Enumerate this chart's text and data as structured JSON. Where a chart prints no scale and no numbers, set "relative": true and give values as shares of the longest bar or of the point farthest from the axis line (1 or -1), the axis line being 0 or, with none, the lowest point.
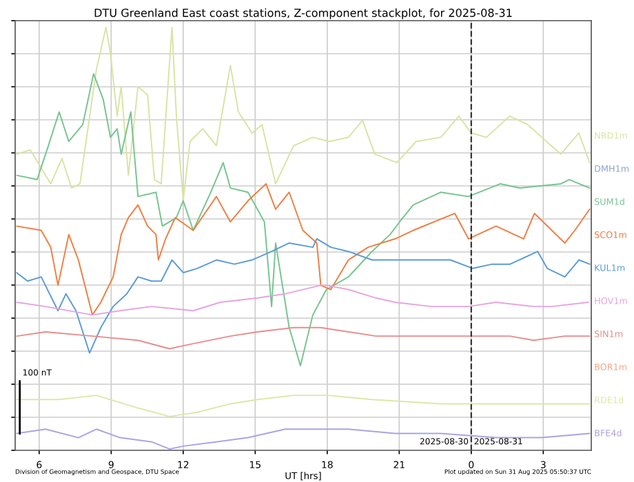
{
  "chart_data": {
    "type": "line",
    "title": "DTU Greenland East coast stations, Z-component stackplot, for 2025-08-31",
    "xlabel": "UT [hrs]",
    "xlim": [
      "2025-08-30T05:00",
      "2025-08-31T05:00"
    ],
    "xticks": [
      {
        "value": "2025-08-30T06:00",
        "label": "6"
      },
      {
        "value": "2025-08-30T09:00",
        "label": "9"
      },
      {
        "value": "2025-08-30T12:00",
        "label": "12"
      },
      {
        "value": "2025-08-30T15:00",
        "label": "15"
      },
      {
        "value": "2025-08-30T18:00",
        "label": "18"
      },
      {
        "value": "2025-08-30T21:00",
        "label": "21"
      },
      {
        "value": "2025-08-31T00:00",
        "label": "0"
      },
      {
        "value": "2025-08-31T03:00",
        "label": "3"
      }
    ],
    "relative": true,
    "grid": true,
    "tick_labels": "x",
    "line_style": "solid",
    "marker": "none",
    "series": [
      {
        "name": "NRD1m",
        "color": "#d9e3a3",
        "x": [
          "2025-08-30T05:04",
          "2025-08-30T05:38",
          "2025-08-30T06:29",
          "2025-08-30T06:57",
          "2025-08-30T07:21",
          "2025-08-30T07:42",
          "2025-08-30T08:23",
          "2025-08-30T08:47",
          "2025-08-30T08:58",
          "2025-08-30T09:15",
          "2025-08-30T09:25",
          "2025-08-30T09:43",
          "2025-08-30T10:07",
          "2025-08-30T10:31",
          "2025-08-30T10:48",
          "2025-08-30T11:05",
          "2025-08-30T11:32",
          "2025-08-30T11:43",
          "2025-08-30T12:00",
          "2025-08-30T12:17",
          "2025-08-30T12:49",
          "2025-08-30T13:23",
          "2025-08-30T13:58",
          "2025-08-30T14:18",
          "2025-08-30T14:52",
          "2025-08-30T15:17",
          "2025-08-30T15:51",
          "2025-08-30T16:36",
          "2025-08-30T17:24",
          "2025-08-30T18:05",
          "2025-08-30T18:53",
          "2025-08-30T19:28",
          "2025-08-30T19:59",
          "2025-08-30T20:54",
          "2025-08-30T21:42",
          "2025-08-30T22:44",
          "2025-08-30T23:29",
          "2025-08-31T00:00",
          "2025-08-31T00:38",
          "2025-08-31T01:36",
          "2025-08-31T02:21",
          "2025-08-31T03:20",
          "2025-08-31T03:44",
          "2025-08-31T04:29",
          "2025-08-31T04:56"
        ],
        "values": [
          0.7,
          0.71,
          0.63,
          0.69,
          0.62,
          0.63,
          0.9,
          1,
          0.94,
          0.79,
          0.86,
          0.65,
          0.86,
          0.84,
          0.64,
          0.63,
          1,
          0.79,
          0.59,
          0.73,
          0.76,
          0.72,
          0.91,
          0.8,
          0.75,
          0.77,
          0.63,
          0.72,
          0.74,
          0.73,
          0.74,
          0.78,
          0.7,
          0.68,
          0.73,
          0.74,
          0.79,
          0.75,
          0.74,
          0.79,
          0.77,
          0.72,
          0.7,
          0.75,
          0.68
        ]
      },
      {
        "name": "DMH1m",
        "color": "#8da0cb"
      },
      {
        "name": "SUM1d",
        "color": "#74c48e",
        "x": [
          "2025-08-30T05:04",
          "2025-08-30T05:55",
          "2025-08-30T06:23",
          "2025-08-30T06:50",
          "2025-08-30T07:14",
          "2025-08-30T07:49",
          "2025-08-30T08:16",
          "2025-08-30T08:40",
          "2025-08-30T08:58",
          "2025-08-30T09:15",
          "2025-08-30T09:25",
          "2025-08-30T09:49",
          "2025-08-30T10:07",
          "2025-08-30T10:52",
          "2025-08-30T11:08",
          "2025-08-30T11:43",
          "2025-08-30T12:00",
          "2025-08-30T12:25",
          "2025-08-30T13:09",
          "2025-08-30T13:40",
          "2025-08-30T13:58",
          "2025-08-30T14:42",
          "2025-08-30T15:23",
          "2025-08-30T15:41",
          "2025-08-30T15:51",
          "2025-08-30T16:25",
          "2025-08-30T16:53",
          "2025-08-30T17:24",
          "2025-08-30T17:58",
          "2025-08-30T18:53",
          "2025-08-30T19:52",
          "2025-08-30T20:37",
          "2025-08-30T21:01",
          "2025-08-30T21:35",
          "2025-08-30T22:44",
          "2025-08-30T23:53",
          "2025-08-31T01:13",
          "2025-08-31T02:01",
          "2025-08-31T03:44",
          "2025-08-31T04:05",
          "2025-08-31T04:56"
        ],
        "values": [
          0.65,
          0.64,
          0.72,
          0.8,
          0.73,
          0.77,
          0.89,
          0.83,
          0.74,
          0.76,
          0.7,
          0.8,
          0.6,
          0.61,
          0.53,
          0.55,
          0.59,
          0.52,
          0.61,
          0.68,
          0.62,
          0.61,
          0.54,
          0.34,
          0.49,
          0.29,
          0.2,
          0.32,
          0.38,
          0.41,
          0.47,
          0.51,
          0.54,
          0.58,
          0.61,
          0.6,
          0.63,
          0.62,
          0.63,
          0.64,
          0.62
        ]
      },
      {
        "name": "SCO1m",
        "color": "#f07d40",
        "x": [
          "2025-08-30T05:04",
          "2025-08-30T06:05",
          "2025-08-30T06:29",
          "2025-08-30T06:47",
          "2025-08-30T07:14",
          "2025-08-30T07:38",
          "2025-08-30T08:13",
          "2025-08-30T08:34",
          "2025-08-30T09:05",
          "2025-08-30T09:25",
          "2025-08-30T09:43",
          "2025-08-30T10:07",
          "2025-08-30T10:31",
          "2025-08-30T10:52",
          "2025-08-30T10:58",
          "2025-08-30T11:16",
          "2025-08-30T11:40",
          "2025-08-30T12:25",
          "2025-08-30T13:23",
          "2025-08-30T13:58",
          "2025-08-30T14:42",
          "2025-08-30T15:27",
          "2025-08-30T15:51",
          "2025-08-30T16:25",
          "2025-08-30T16:59",
          "2025-08-30T17:34",
          "2025-08-30T17:44",
          "2025-08-30T18:09",
          "2025-08-30T18:53",
          "2025-08-30T19:42",
          "2025-08-30T20:50",
          "2025-08-30T21:35",
          "2025-08-30T23:19",
          "2025-08-30T23:53",
          "2025-08-31T01:02",
          "2025-08-31T02:11",
          "2025-08-31T02:38",
          "2025-08-31T03:54",
          "2025-08-31T04:19",
          "2025-08-31T04:56"
        ],
        "values": [
          0.53,
          0.52,
          0.48,
          0.39,
          0.51,
          0.45,
          0.32,
          0.35,
          0.41,
          0.51,
          0.55,
          0.58,
          0.53,
          0.51,
          0.45,
          0.5,
          0.55,
          0.52,
          0.6,
          0.54,
          0.59,
          0.63,
          0.57,
          0.61,
          0.52,
          0.49,
          0.39,
          0.38,
          0.45,
          0.48,
          0.5,
          0.52,
          0.56,
          0.5,
          0.53,
          0.5,
          0.56,
          0.49,
          0.52,
          0.57
        ]
      },
      {
        "name": "KUL1m",
        "color": "#5b9bd5",
        "x": [
          "2025-08-30T05:04",
          "2025-08-30T05:31",
          "2025-08-30T06:05",
          "2025-08-30T06:47",
          "2025-08-30T07:07",
          "2025-08-30T07:32",
          "2025-08-30T08:06",
          "2025-08-30T08:34",
          "2025-08-30T09:05",
          "2025-08-30T09:39",
          "2025-08-30T10:07",
          "2025-08-30T10:41",
          "2025-08-30T11:05",
          "2025-08-30T11:32",
          "2025-08-30T12:00",
          "2025-08-30T12:35",
          "2025-08-30T13:23",
          "2025-08-30T14:08",
          "2025-08-30T14:52",
          "2025-08-30T15:41",
          "2025-08-30T16:25",
          "2025-08-30T17:24",
          "2025-08-30T17:34",
          "2025-08-30T18:09",
          "2025-08-30T18:53",
          "2025-08-30T19:52",
          "2025-08-30T21:01",
          "2025-08-30T22:00",
          "2025-08-30T23:08",
          "2025-08-31T00:04",
          "2025-08-31T00:52",
          "2025-08-31T01:37",
          "2025-08-31T02:46",
          "2025-08-31T03:10",
          "2025-08-31T03:54",
          "2025-08-31T04:29",
          "2025-08-31T04:56"
        ],
        "values": [
          0.42,
          0.4,
          0.41,
          0.33,
          0.37,
          0.33,
          0.23,
          0.29,
          0.34,
          0.37,
          0.41,
          0.4,
          0.4,
          0.45,
          0.42,
          0.43,
          0.45,
          0.44,
          0.45,
          0.47,
          0.49,
          0.48,
          0.5,
          0.48,
          0.47,
          0.45,
          0.45,
          0.45,
          0.45,
          0.43,
          0.44,
          0.44,
          0.47,
          0.43,
          0.41,
          0.45,
          0.44
        ]
      },
      {
        "name": "HOV1m",
        "color": "#e6a3e0",
        "x": [
          "2025-08-30T05:04",
          "2025-08-30T06:16",
          "2025-08-30T08:13",
          "2025-08-30T09:22",
          "2025-08-30T10:41",
          "2025-08-30T12:25",
          "2025-08-30T13:33",
          "2025-08-30T15:06",
          "2025-08-30T16:15",
          "2025-08-30T17:44",
          "2025-08-30T17:58",
          "2025-08-30T18:53",
          "2025-08-30T20:02",
          "2025-08-30T20:50",
          "2025-08-30T22:20",
          "2025-08-30T23:53",
          "2025-08-31T01:02",
          "2025-08-31T02:35",
          "2025-08-31T03:20",
          "2025-08-31T04:53"
        ],
        "values": [
          0.35,
          0.34,
          0.32,
          0.33,
          0.34,
          0.33,
          0.35,
          0.36,
          0.37,
          0.39,
          0.39,
          0.38,
          0.36,
          0.35,
          0.34,
          0.34,
          0.35,
          0.34,
          0.34,
          0.35
        ]
      },
      {
        "name": "SIN1m",
        "color": "#e98c8c",
        "x": [
          "2025-08-30T05:04",
          "2025-08-30T06:16",
          "2025-08-30T08:13",
          "2025-08-30T10:07",
          "2025-08-30T11:26",
          "2025-08-30T12:14",
          "2025-08-30T13:58",
          "2025-08-30T15:06",
          "2025-08-30T16:36",
          "2025-08-30T17:44",
          "2025-08-30T18:53",
          "2025-08-30T20:02",
          "2025-08-30T21:46",
          "2025-08-30T23:53",
          "2025-08-31T01:37",
          "2025-08-31T02:35",
          "2025-08-31T03:54",
          "2025-08-31T04:56"
        ],
        "values": [
          0.27,
          0.28,
          0.27,
          0.26,
          0.24,
          0.25,
          0.27,
          0.28,
          0.29,
          0.29,
          0.28,
          0.27,
          0.27,
          0.27,
          0.27,
          0.26,
          0.27,
          0.27
        ]
      },
      {
        "name": "BOR1m",
        "color": "#f4a582"
      },
      {
        "name": "RDE1d",
        "color": "#dfe6a6",
        "x": [
          "2025-08-30T05:04",
          "2025-08-30T06:50",
          "2025-08-30T08:23",
          "2025-08-30T10:07",
          "2025-08-30T11:26",
          "2025-08-30T12:35",
          "2025-08-30T13:58",
          "2025-08-30T15:06",
          "2025-08-30T16:36",
          "2025-08-30T18:02",
          "2025-08-30T19:52",
          "2025-08-30T22:44",
          "2025-08-31T01:37",
          "2025-08-31T03:30",
          "2025-08-31T04:56"
        ],
        "values": [
          0.12,
          0.12,
          0.13,
          0.1,
          0.08,
          0.09,
          0.11,
          0.12,
          0.13,
          0.13,
          0.12,
          0.11,
          0.11,
          0.11,
          0.11
        ]
      },
      {
        "name": "BFE4d",
        "color": "#a9a3e3",
        "x": [
          "2025-08-30T05:04",
          "2025-08-30T06:16",
          "2025-08-30T07:38",
          "2025-08-30T08:23",
          "2025-08-30T09:22",
          "2025-08-30T10:41",
          "2025-08-30T11:26",
          "2025-08-30T12:00",
          "2025-08-30T13:23",
          "2025-08-30T14:42",
          "2025-08-30T16:15",
          "2025-08-30T17:44",
          "2025-08-30T18:53",
          "2025-08-30T20:50",
          "2025-08-30T22:44",
          "2025-08-31T01:02",
          "2025-08-31T02:56",
          "2025-08-31T04:56"
        ],
        "values": [
          0.04,
          0.05,
          0.03,
          0.05,
          0.03,
          0.02,
          0.003,
          0.01,
          0.02,
          0.03,
          0.05,
          0.05,
          0.05,
          0.04,
          0.04,
          0.03,
          0.03,
          0.04
        ]
      }
    ],
    "ref_lines": [
      {
        "axis": "x",
        "value": "2025-08-31T00:00",
        "color": "#333333",
        "line_style": "dashed"
      }
    ],
    "annotations": [
      {
        "text": "2025-08-30",
        "x": "2025-08-31T00:00",
        "y": 0.01
      },
      {
        "text": "2025-08-31",
        "x": "2025-08-31T00:00",
        "y": 0.01
      },
      "100 nT",
      "Division of Geomagnetism and Geospace, DTU Space",
      "Plot updated on Sun 31 Aug 2025 05:50:37 UTC"
    ]
  }
}
